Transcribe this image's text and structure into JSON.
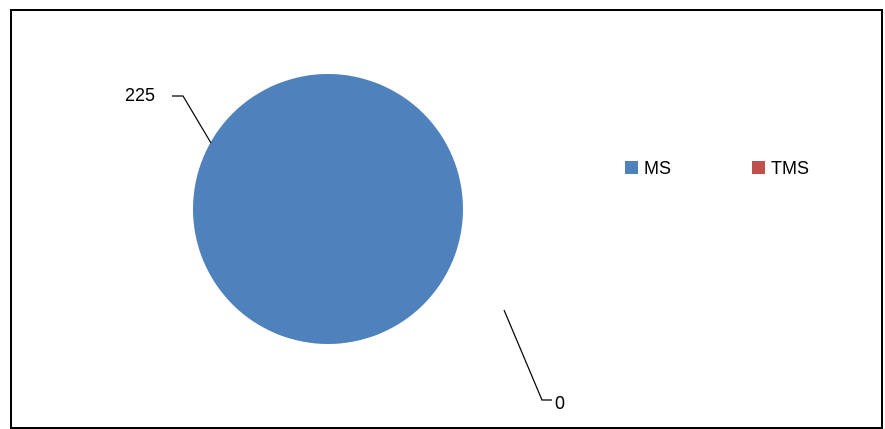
{
  "chart_data": {
    "type": "pie",
    "categories": [
      "MS",
      "TMS"
    ],
    "values": [
      225,
      0
    ],
    "colors": [
      "#4F81BD",
      "#C0504D"
    ],
    "data_labels": [
      "225",
      "0"
    ],
    "legend": {
      "placement": "right",
      "entries": [
        "MS",
        "TMS"
      ]
    }
  }
}
